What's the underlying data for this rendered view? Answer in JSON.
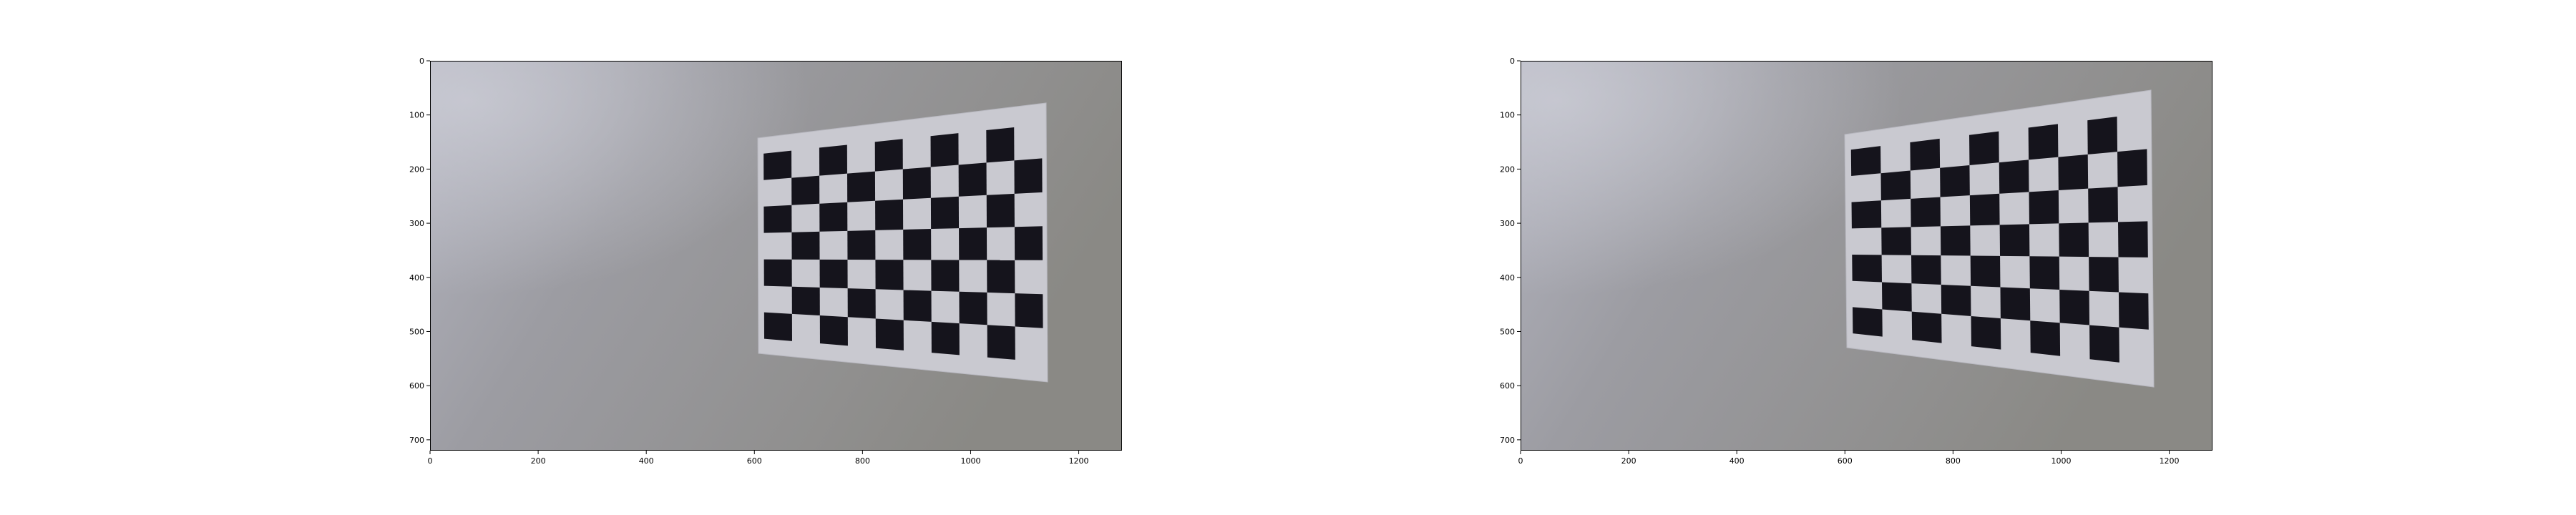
{
  "panels": [
    {
      "id": "left",
      "xticks": [
        "0",
        "200",
        "400",
        "600",
        "800",
        "1000",
        "1200"
      ],
      "yticks": [
        "0",
        "100",
        "200",
        "300",
        "400",
        "500",
        "600",
        "700"
      ]
    },
    {
      "id": "right",
      "xticks": [
        "0",
        "200",
        "400",
        "600",
        "800",
        "1000",
        "1200"
      ],
      "yticks": [
        "0",
        "100",
        "200",
        "300",
        "400",
        "500",
        "600",
        "700"
      ]
    }
  ],
  "colors": {
    "wall_light": "#b3b4bf",
    "wall_mid": "#9c9ca2",
    "wall_dark": "#8a8985",
    "board_paper": "#c9c9d0",
    "board_square": "#15141c"
  },
  "icons": {
    "photo": "checkerboard-calibration-photo"
  }
}
